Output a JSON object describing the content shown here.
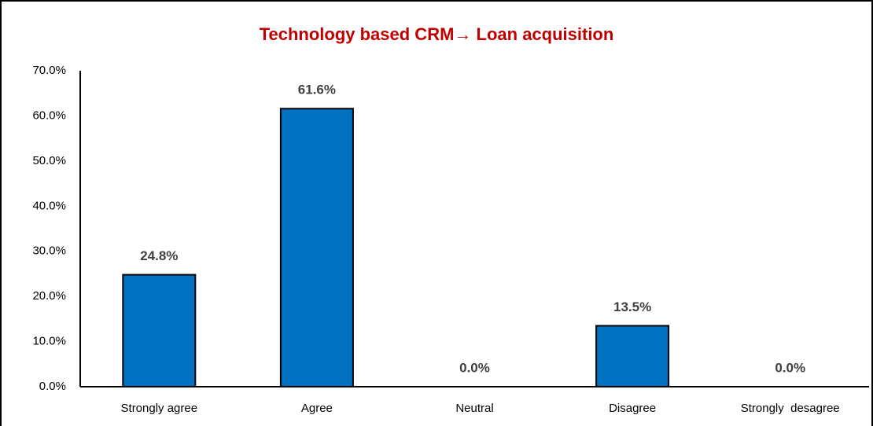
{
  "chart_data": {
    "type": "bar",
    "title": "Technology based CRM→ Loan acquisition",
    "categories": [
      "Strongly agree",
      "Agree",
      "Neutral",
      "Disagree",
      "Strongly  desagree"
    ],
    "values": [
      24.8,
      61.6,
      0,
      13.5,
      0
    ],
    "value_labels": [
      "24.8%",
      "61.6%",
      "0.0%",
      "13.5%",
      "0.0%"
    ],
    "color": "#0070c0",
    "ylim": [
      0,
      70
    ],
    "yticks": [
      {
        "value": 0,
        "label": "0.0%"
      },
      {
        "value": 10,
        "label": "10.0%"
      },
      {
        "value": 20,
        "label": "20.0%"
      },
      {
        "value": 30,
        "label": "30.0%"
      },
      {
        "value": 40,
        "label": "40.0%"
      },
      {
        "value": 50,
        "label": "50.0%"
      },
      {
        "value": 60,
        "label": "60.0%"
      },
      {
        "value": 70,
        "label": "70.0%"
      }
    ],
    "grid": false
  }
}
